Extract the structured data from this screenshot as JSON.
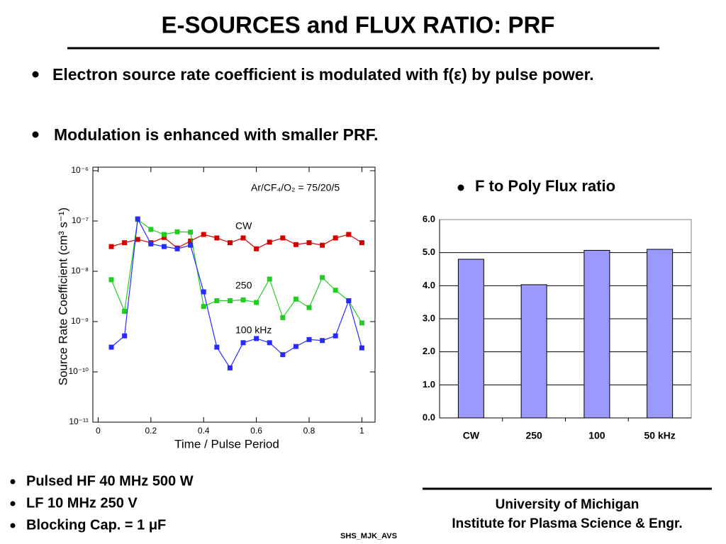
{
  "title": "E-SOURCES and FLUX RATIO: PRF",
  "bullets": [
    "Electron source rate coefficient is modulated with f(ε) by pulse power.",
    "Modulation is enhanced with smaller PRF."
  ],
  "chart_data": [
    {
      "type": "line",
      "annotation": "Ar/CF₄/O₂ = 75/20/5",
      "xlabel": "Time / Pulse Period",
      "ylabel": "Source Rate Coefficient (cm³ s⁻¹)",
      "log_y": true,
      "x": [
        0.05,
        0.1,
        0.15,
        0.2,
        0.25,
        0.3,
        0.35,
        0.4,
        0.45,
        0.5,
        0.55,
        0.6,
        0.65,
        0.7,
        0.75,
        0.8,
        0.85,
        0.9,
        0.95,
        1.0
      ],
      "xlim": [
        -0.02,
        1.05
      ],
      "xticks": [
        0,
        0.2,
        0.4,
        0.6,
        0.8,
        1
      ],
      "ylim": [
        1e-11,
        1e-06
      ],
      "yticks": [
        {
          "value": 1e-11,
          "label": "10⁻¹¹"
        },
        {
          "value": 1e-10,
          "label": "10⁻¹⁰"
        },
        {
          "value": 1e-09,
          "label": "10⁻⁹"
        },
        {
          "value": 1e-08,
          "label": "10⁻⁸"
        },
        {
          "value": 1e-07,
          "label": "10⁻⁷"
        },
        {
          "value": 1e-06,
          "label": "10⁻⁶"
        }
      ],
      "series": [
        {
          "name": "CW",
          "color": "#d40000",
          "values": [
            3.1e-08,
            3.7e-08,
            4.3e-08,
            3.7e-08,
            4.7e-08,
            2.9e-08,
            4e-08,
            5.4e-08,
            4.6e-08,
            3.7e-08,
            4.6e-08,
            2.8e-08,
            3.8e-08,
            4.6e-08,
            3.4e-08,
            3.7e-08,
            3.3e-08,
            4.6e-08,
            5.4e-08,
            3.7e-08
          ]
        },
        {
          "name": "250",
          "color": "#22cc22",
          "values": [
            6.8e-09,
            1.6e-09,
            1.07e-07,
            6.8e-08,
            5.4e-08,
            6.1e-08,
            6e-08,
            2e-09,
            2.6e-09,
            2.6e-09,
            2.7e-09,
            2.4e-09,
            7e-09,
            1.2e-09,
            2.8e-09,
            1.9e-09,
            7.5e-09,
            4.2e-09,
            2.6e-09,
            9.4e-10
          ]
        },
        {
          "name": "100 kHz",
          "color": "#2a2aff",
          "values": [
            3.1e-10,
            5.2e-10,
            1.1e-07,
            3.5e-08,
            3.1e-08,
            2.8e-08,
            3.3e-08,
            3.9e-09,
            3.1e-10,
            1.2e-10,
            3.8e-10,
            4.6e-10,
            3.8e-10,
            2.2e-10,
            3.2e-10,
            4.4e-10,
            4.2e-10,
            5.2e-10,
            2.6e-09,
            3e-10
          ]
        }
      ]
    },
    {
      "type": "bar",
      "title": "F to Poly Flux ratio",
      "categories": [
        "CW",
        "250",
        "100",
        "50 kHz"
      ],
      "values": [
        4.8,
        4.03,
        5.07,
        5.1
      ],
      "color": "#9999ff",
      "ylim": [
        0,
        6
      ],
      "yticks": [
        {
          "value": 0,
          "label": "0.0"
        },
        {
          "value": 1,
          "label": "1.0"
        },
        {
          "value": 2,
          "label": "2.0"
        },
        {
          "value": 3,
          "label": "3.0"
        },
        {
          "value": 4,
          "label": "4.0"
        },
        {
          "value": 5,
          "label": "5.0"
        },
        {
          "value": 6,
          "label": "6.0"
        }
      ],
      "grid": true
    }
  ],
  "conditions": [
    "Pulsed HF 40 MHz 500 W",
    "LF 10 MHz 250 V",
    "Blocking Cap. = 1 μF"
  ],
  "footer": {
    "affiliation": [
      "University of Michigan",
      "Institute for Plasma Science & Engr."
    ],
    "code": "SHS_MJK_AVS"
  }
}
